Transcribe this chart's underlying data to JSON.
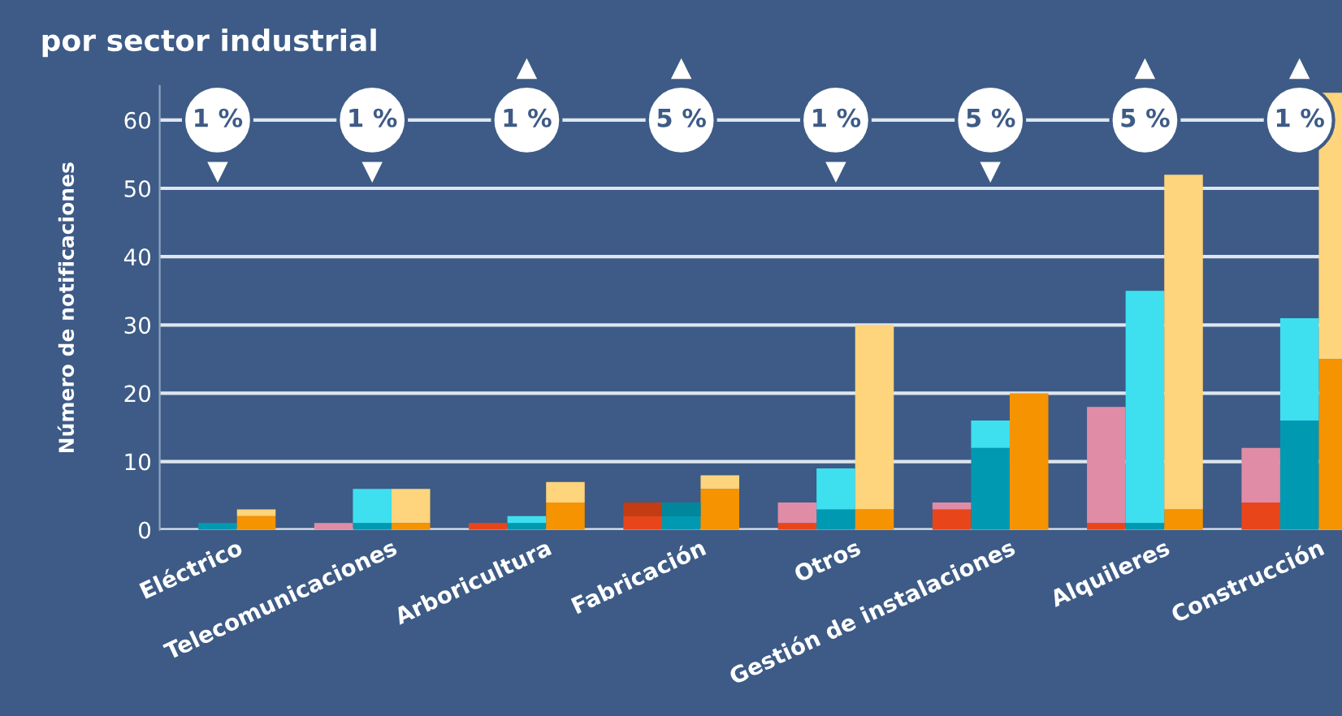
{
  "chart_data": {
    "type": "bar",
    "title": "por sector industrial",
    "ylabel": "Número de notificaciones",
    "stacked": true,
    "categories": [
      null,
      "Eléctrico",
      null,
      null,
      null,
      "Telecomunicaciones",
      null,
      null,
      null,
      "Arboricultura",
      null,
      null,
      null,
      "Fabricación",
      null,
      null,
      null,
      "Otros",
      null,
      null,
      null,
      "Gestión de instalaciones",
      null,
      null,
      null,
      "Alquileres",
      null,
      null,
      null,
      "Construcción",
      null
    ],
    "series": [
      {
        "colors": [
          "#e8461a",
          "#0099b2",
          "#f59300",
          null,
          "#e8461a",
          "#0099b2",
          "#f59300",
          null,
          "#e8461a",
          "#0099b2",
          "#f59300",
          null,
          "#e8461a",
          "#0099b2",
          "#f59300",
          null,
          "#e8461a",
          "#0099b2",
          "#f59300",
          null,
          "#e8461a",
          "#0099b2",
          "#f59300",
          null,
          "#e8461a",
          "#0099b2",
          "#f59300",
          null,
          "#e8461a",
          "#0099b2",
          "#f59300"
        ],
        "values": [
          0,
          1,
          2,
          null,
          0,
          1,
          1,
          null,
          1,
          1,
          4,
          null,
          2,
          2,
          6,
          null,
          1,
          3,
          3,
          null,
          3,
          12,
          20,
          null,
          1,
          1,
          3,
          null,
          4,
          16,
          25
        ]
      },
      {
        "colors": [
          "#e08ca6",
          "#3ee0f0",
          "#fed47c",
          null,
          "#e08ca6",
          "#3ee0f0",
          "#fed47c",
          null,
          "#e08ca6",
          "#3ee0f0",
          "#fed47c",
          null,
          "#c43c12",
          "#00879c",
          "#fed47c",
          null,
          "#e08ca6",
          "#3ee0f0",
          "#fed47c",
          null,
          "#e08ca6",
          "#3ee0f0",
          "#fed47c",
          null,
          "#e08ca6",
          "#3ee0f0",
          "#fed47c",
          null,
          "#e08ca6",
          "#3ee0f0",
          "#fed47c"
        ],
        "values": [
          0,
          0,
          1,
          null,
          1,
          5,
          5,
          null,
          0,
          1,
          3,
          null,
          2,
          2,
          2,
          null,
          3,
          6,
          27,
          null,
          1,
          4,
          0,
          null,
          17,
          34,
          49,
          null,
          8,
          15,
          39
        ]
      }
    ],
    "ylim": [
      0,
      65
    ],
    "yticks": [
      0,
      10,
      20,
      30,
      40,
      50,
      60
    ],
    "grid": "y",
    "annotations": [
      "1 %",
      "▼",
      "1 %",
      "▼",
      "1 %",
      "▲",
      "5 %",
      "▲",
      "1 %",
      "▼",
      "5 %",
      "▼",
      "5 %",
      "▲",
      "1 %",
      "▲"
    ]
  }
}
